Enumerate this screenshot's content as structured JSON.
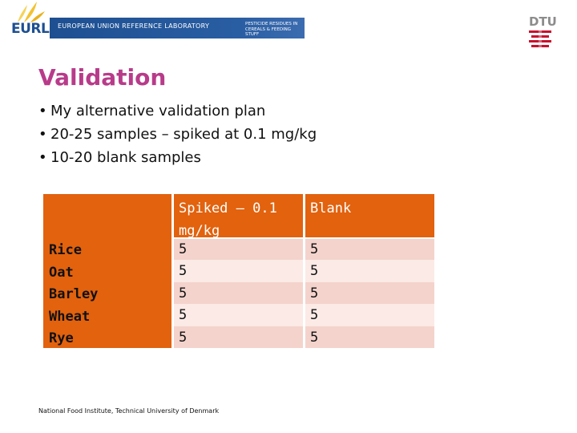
{
  "header": {
    "logo_text": "EURL",
    "banner_main": "EUROPEAN UNION REFERENCE LABORATORY",
    "banner_sub": "PESTICIDE RESIDUES IN\nCEREALS & FEEDING STUFF",
    "dtu_logo": "DTU"
  },
  "slide": {
    "title": "Validation",
    "bullets": [
      "My alternative validation plan",
      "20-25 samples – spiked at 0.1 mg/kg",
      "10-20 blank samples"
    ]
  },
  "table": {
    "headers": [
      "",
      "Spiked – 0.1 mg/kg",
      "Blank"
    ],
    "header_spiked_line1": "Spiked – 0.1",
    "header_spiked_line2": "mg/kg",
    "rows": [
      {
        "label": "Rice",
        "spiked": "5",
        "blank": "5"
      },
      {
        "label": "Oat",
        "spiked": "5",
        "blank": "5"
      },
      {
        "label": "Barley",
        "spiked": "5",
        "blank": "5"
      },
      {
        "label": "Wheat",
        "spiked": "5",
        "blank": "5"
      },
      {
        "label": "Rye",
        "spiked": "5",
        "blank": "5"
      }
    ]
  },
  "footer": {
    "text": "National Food Institute, Technical University of Denmark"
  },
  "colors": {
    "title": "#b83b8a",
    "table_header": "#e2620e",
    "row_light": "#fbeae6",
    "row_dark": "#f4d3cc",
    "banner": "#1d4f91"
  }
}
